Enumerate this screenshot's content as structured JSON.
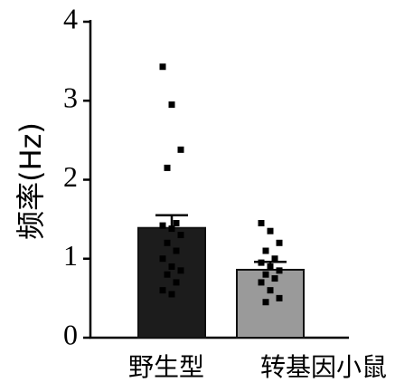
{
  "chart_data": {
    "type": "bar",
    "ylabel": "频率(Hz)",
    "categories": [
      "野生型",
      "转基因小鼠"
    ],
    "values": [
      1.39,
      0.86
    ],
    "errors": [
      0.16,
      0.1
    ],
    "colors": [
      "#1c1c1c",
      "#9a9a9a"
    ],
    "points": [
      [
        3.43,
        2.95,
        2.38,
        2.15,
        1.45,
        1.42,
        1.38,
        1.3,
        1.2,
        1.1,
        1.0,
        0.9,
        0.85,
        0.8,
        0.7,
        0.6,
        0.55
      ],
      [
        1.45,
        1.35,
        1.2,
        1.1,
        1.0,
        0.95,
        0.9,
        0.85,
        0.8,
        0.75,
        0.7,
        0.6,
        0.5,
        0.45
      ]
    ],
    "ylim": [
      0,
      4
    ],
    "yticks": [
      0,
      1,
      2,
      3,
      4
    ]
  }
}
